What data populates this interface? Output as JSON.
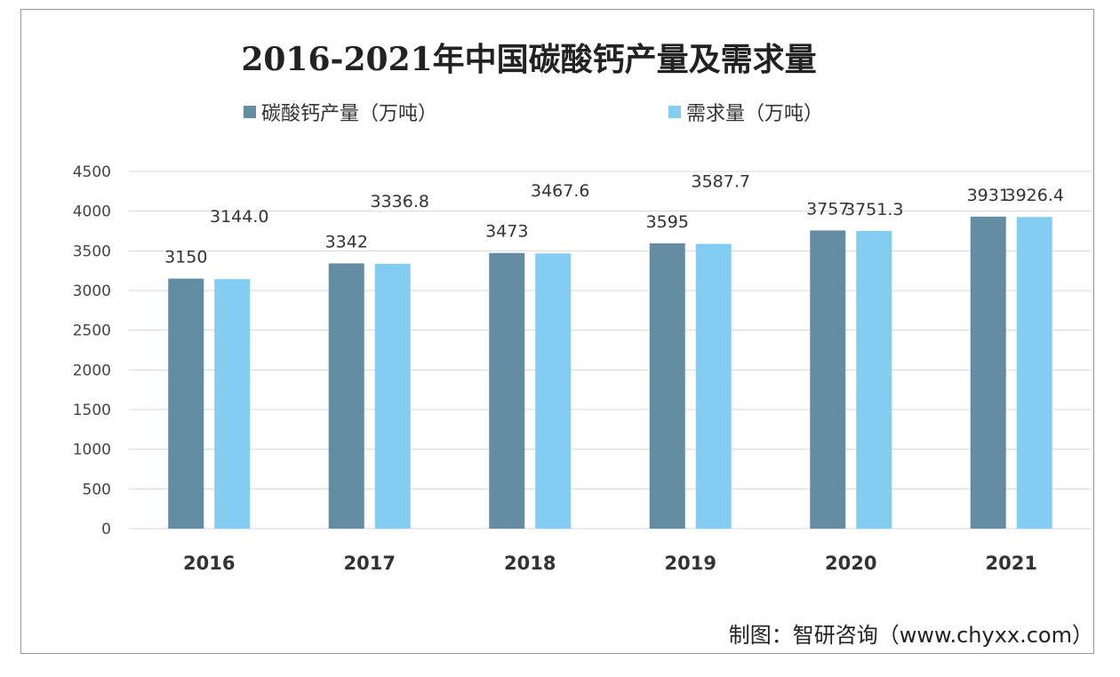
{
  "chart_data": {
    "type": "bar",
    "title": "2016-2021年中国碳酸钙产量及需求量",
    "categories": [
      "2016",
      "2017",
      "2018",
      "2019",
      "2020",
      "2021"
    ],
    "series": [
      {
        "name": "碳酸钙产量（万吨）",
        "color": "#648ca2",
        "values": [
          3150,
          3342,
          3473,
          3595,
          3757,
          3931
        ],
        "labels": [
          "3150",
          "3342",
          "3473",
          "3595",
          "3757",
          "3931"
        ]
      },
      {
        "name": "需求量（万吨）",
        "color": "#84cdf2",
        "values": [
          3144.0,
          3336.8,
          3467.6,
          3587.7,
          3751.3,
          3926.4
        ],
        "labels": [
          "3144.0",
          "3336.8",
          "3467.6",
          "3587.7",
          "3751.3",
          "3926.4"
        ]
      }
    ],
    "ylim": [
      0,
      4500
    ],
    "yticks": [
      0,
      500,
      1000,
      1500,
      2000,
      2500,
      3000,
      3500,
      4000,
      4500
    ],
    "grid": true,
    "legend_position": "top"
  },
  "source": "制图：智研咨询（www.chyxx.com）"
}
